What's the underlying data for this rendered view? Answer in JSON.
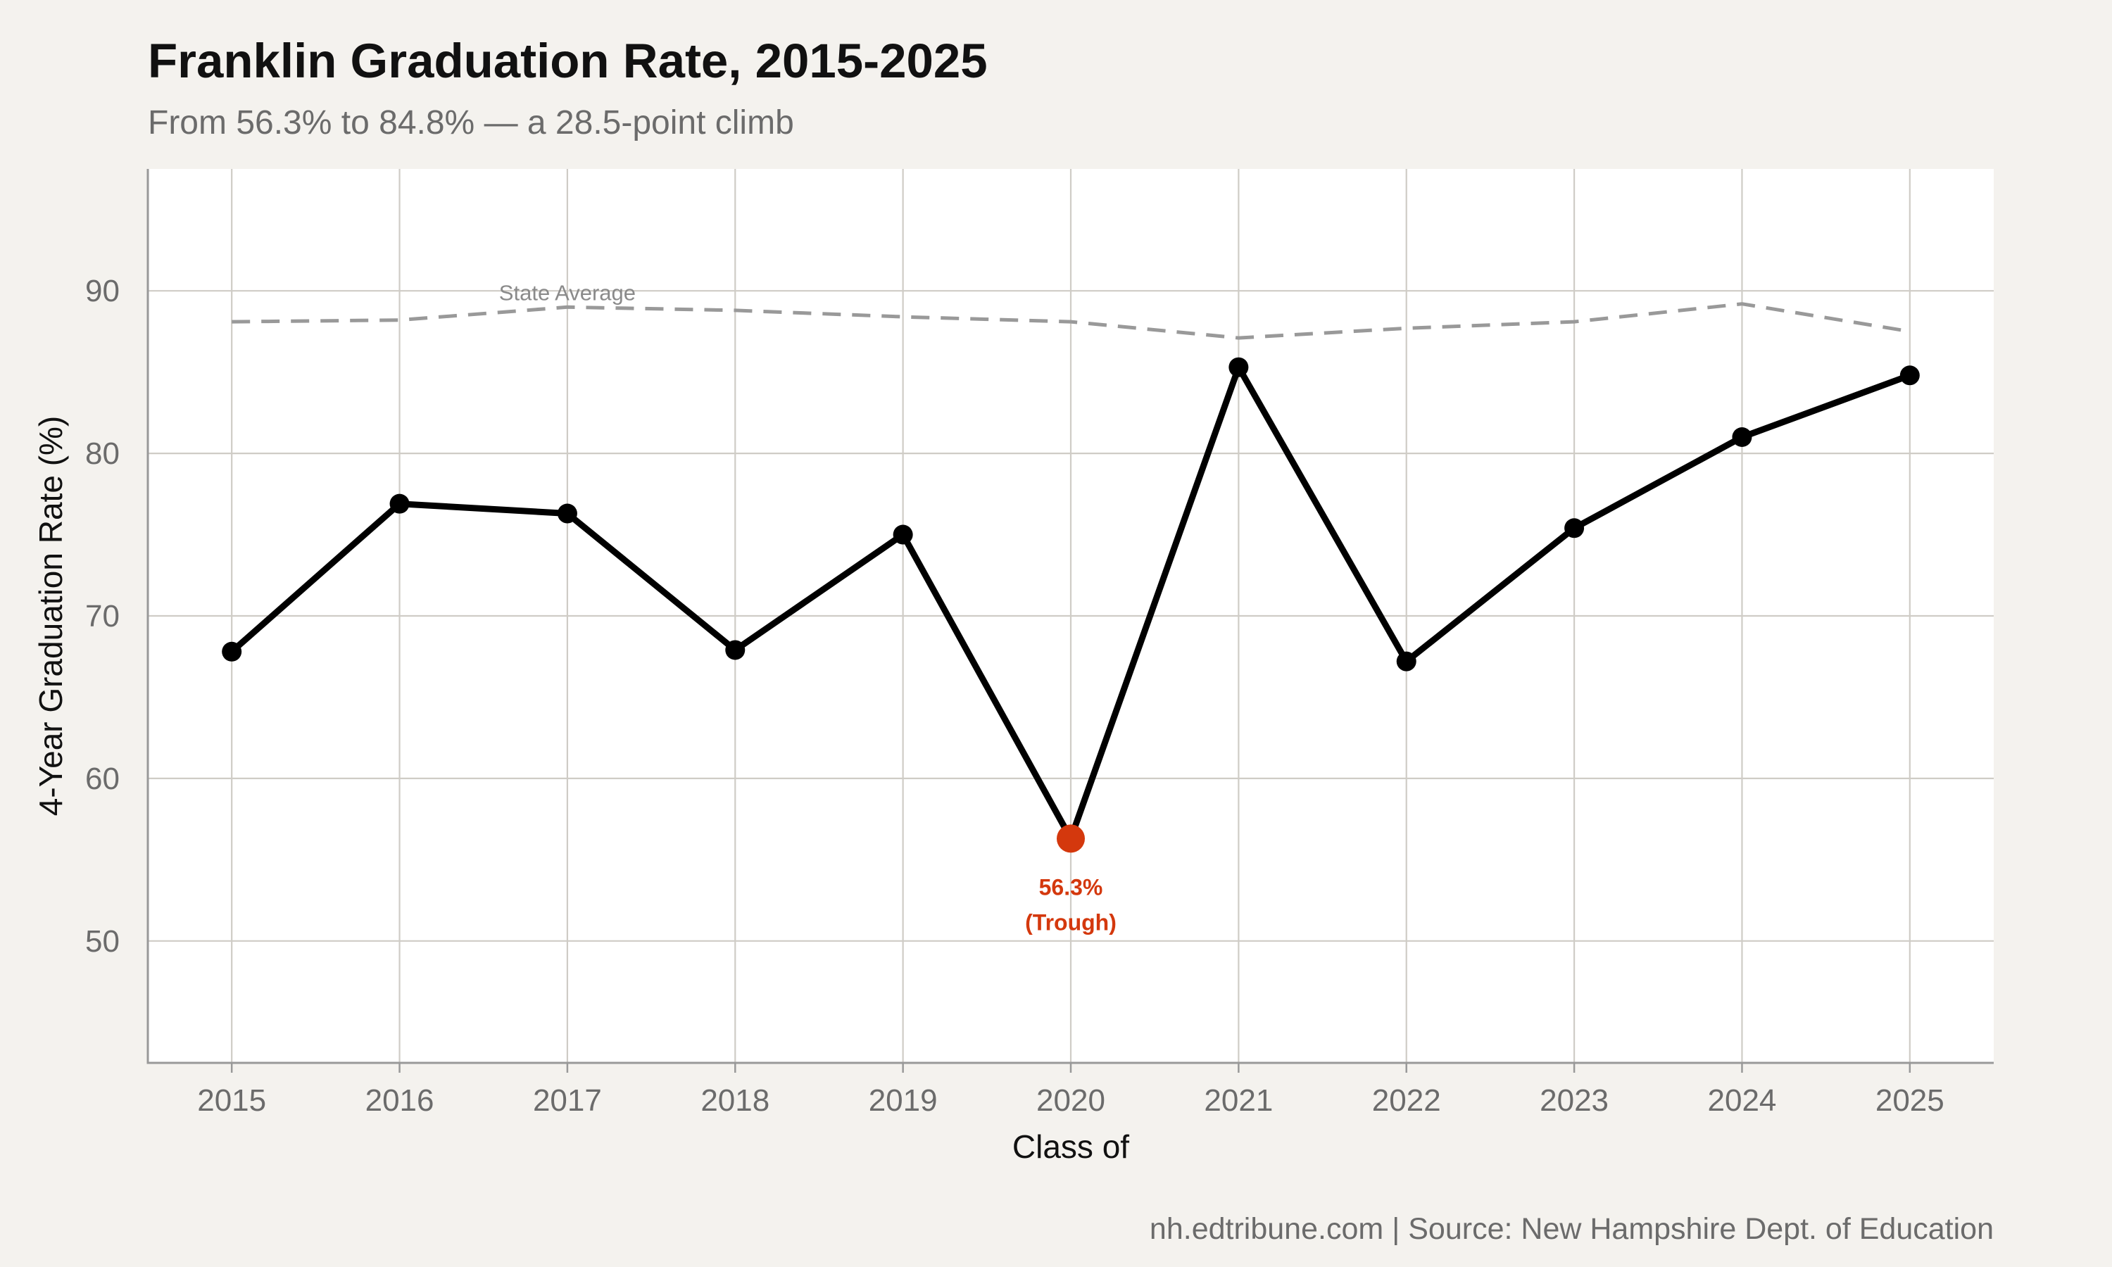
{
  "title": "Franklin Graduation Rate, 2015-2025",
  "subtitle": "From 56.3% to 84.8% — a 28.5-point climb",
  "caption": "nh.edtribune.com | Source: New Hampshire Dept. of Education",
  "colors": {
    "background": "#f4f2ee",
    "panel": "#ffffff",
    "grid": "#cfccc6",
    "main_line": "#000000",
    "state_line": "#999999",
    "highlight": "#d4380d"
  },
  "chart_data": {
    "type": "line",
    "title": "Franklin Graduation Rate, 2015-2025",
    "subtitle": "From 56.3% to 84.8% — a 28.5-point climb",
    "xlabel": "Class of",
    "ylabel": "4-Year Graduation Rate (%)",
    "x": [
      2015,
      2016,
      2017,
      2018,
      2019,
      2020,
      2021,
      2022,
      2023,
      2024,
      2025
    ],
    "x_ticks": [
      "2015",
      "2016",
      "2017",
      "2018",
      "2019",
      "2020",
      "2021",
      "2022",
      "2023",
      "2024",
      "2025"
    ],
    "y_ticks": [
      "50",
      "60",
      "70",
      "80",
      "90"
    ],
    "ylim": [
      42.5,
      97.5
    ],
    "xlim": [
      2014.5,
      2025.5
    ],
    "grid": true,
    "series": [
      {
        "values": [
          67.8,
          76.9,
          76.3,
          67.9,
          75.0,
          56.3,
          85.3,
          67.2,
          75.4,
          81.0,
          84.8
        ],
        "style": "solid",
        "markers": true
      },
      {
        "name": "State Average",
        "values": [
          88.1,
          88.2,
          89.0,
          88.8,
          88.4,
          88.1,
          87.1,
          87.7,
          88.1,
          89.2,
          87.5
        ],
        "style": "dashed",
        "markers": false
      }
    ],
    "annotations": [
      {
        "x": 2020,
        "y": 56.3,
        "line1": "56.3%",
        "line2": "(Trough)"
      }
    ],
    "state_label_at_x": 2017
  }
}
